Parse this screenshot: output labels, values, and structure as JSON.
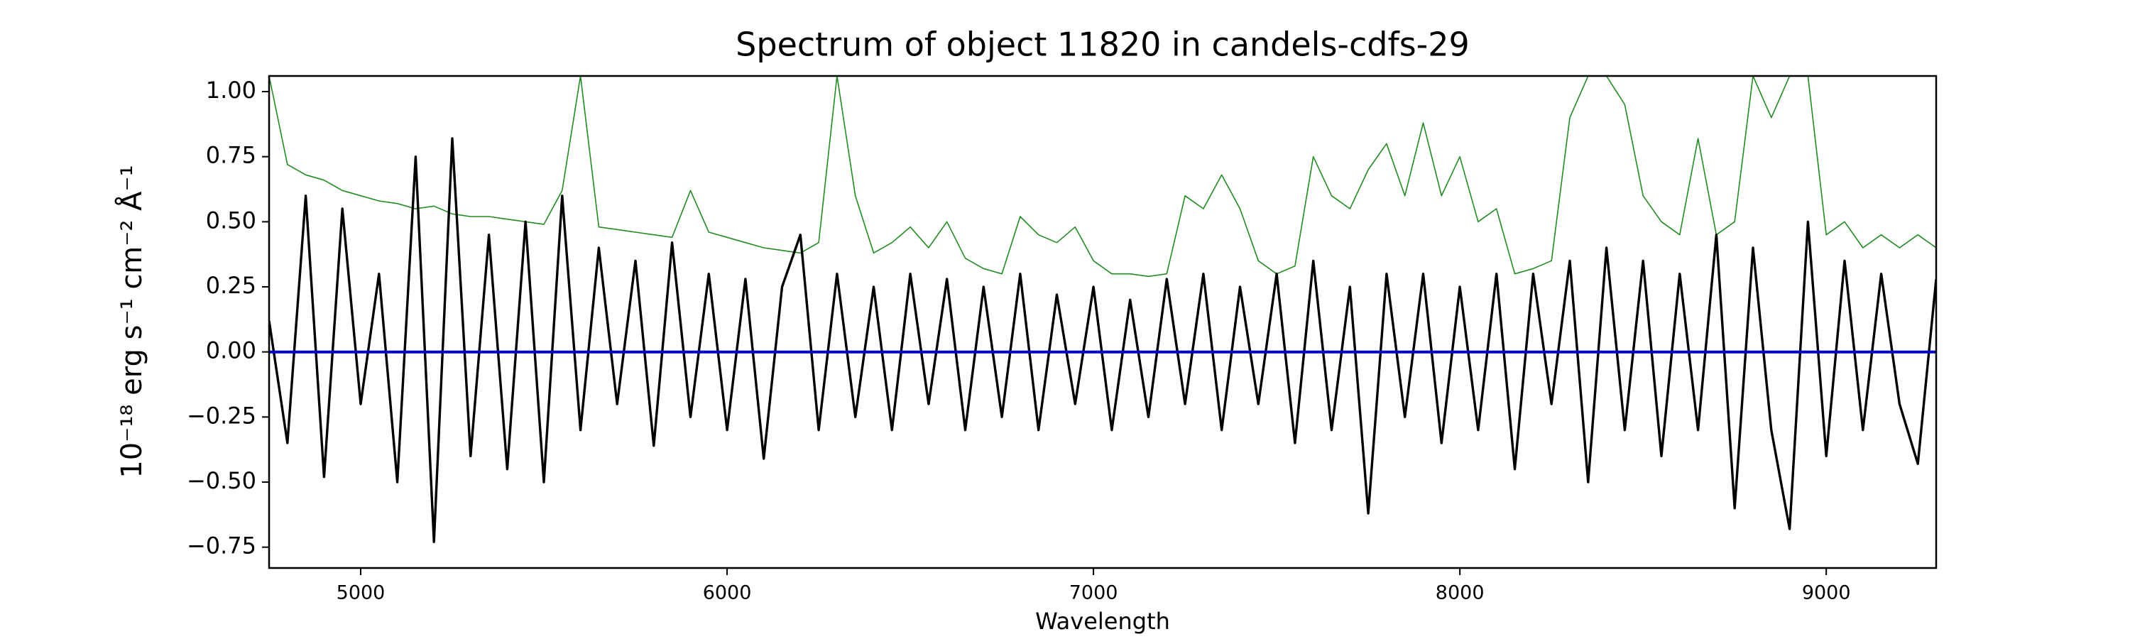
{
  "chart_data": {
    "type": "line",
    "title": "Spectrum of object 11820 in candels-cdfs-29",
    "xlabel": "Wavelength",
    "ylabel": "10⁻¹⁸ erg s⁻¹ cm⁻² Å⁻¹",
    "x": [
      4750,
      4800,
      4850,
      4900,
      4950,
      5000,
      5050,
      5100,
      5150,
      5200,
      5250,
      5300,
      5350,
      5400,
      5450,
      5500,
      5550,
      5600,
      5650,
      5700,
      5750,
      5800,
      5850,
      5900,
      5950,
      6000,
      6050,
      6100,
      6150,
      6200,
      6250,
      6300,
      6350,
      6400,
      6450,
      6500,
      6550,
      6600,
      6650,
      6700,
      6750,
      6800,
      6850,
      6900,
      6950,
      7000,
      7050,
      7100,
      7150,
      7200,
      7250,
      7300,
      7350,
      7400,
      7450,
      7500,
      7550,
      7600,
      7650,
      7700,
      7750,
      7800,
      7850,
      7900,
      7950,
      8000,
      8050,
      8100,
      8150,
      8200,
      8250,
      8300,
      8350,
      8400,
      8450,
      8500,
      8550,
      8600,
      8650,
      8700,
      8750,
      8800,
      8850,
      8900,
      8950,
      9000,
      9050,
      9100,
      9150,
      9200,
      9250,
      9300
    ],
    "series": [
      {
        "color": "#228b22",
        "values": [
          1.06,
          0.72,
          0.68,
          0.66,
          0.62,
          0.6,
          0.58,
          0.57,
          0.55,
          0.56,
          0.53,
          0.52,
          0.52,
          0.51,
          0.5,
          0.49,
          0.62,
          1.06,
          0.48,
          0.47,
          0.46,
          0.45,
          0.44,
          0.62,
          0.46,
          0.44,
          0.42,
          0.4,
          0.39,
          0.38,
          0.42,
          1.06,
          0.6,
          0.38,
          0.42,
          0.48,
          0.4,
          0.5,
          0.36,
          0.32,
          0.3,
          0.52,
          0.45,
          0.42,
          0.48,
          0.35,
          0.3,
          0.3,
          0.29,
          0.3,
          0.6,
          0.55,
          0.68,
          0.55,
          0.35,
          0.3,
          0.33,
          0.75,
          0.6,
          0.55,
          0.7,
          0.8,
          0.6,
          0.88,
          0.6,
          0.75,
          0.5,
          0.55,
          0.3,
          0.32,
          0.35,
          0.9,
          1.06,
          1.06,
          0.95,
          0.6,
          0.5,
          0.45,
          0.82,
          0.45,
          0.5,
          1.06,
          0.9,
          1.06,
          1.06,
          0.45,
          0.5,
          0.4,
          0.45,
          0.4,
          0.45,
          0.4
        ]
      },
      {
        "color": "#000000",
        "values": [
          0.12,
          -0.35,
          0.6,
          -0.48,
          0.55,
          -0.2,
          0.3,
          -0.5,
          0.75,
          -0.73,
          0.82,
          -0.4,
          0.45,
          -0.45,
          0.5,
          -0.5,
          0.6,
          -0.3,
          0.4,
          -0.2,
          0.35,
          -0.36,
          0.42,
          -0.25,
          0.3,
          -0.3,
          0.28,
          -0.41,
          0.25,
          0.45,
          -0.3,
          0.3,
          -0.25,
          0.25,
          -0.3,
          0.3,
          -0.2,
          0.28,
          -0.3,
          0.25,
          -0.25,
          0.3,
          -0.3,
          0.22,
          -0.2,
          0.25,
          -0.3,
          0.2,
          -0.25,
          0.28,
          -0.2,
          0.3,
          -0.3,
          0.25,
          -0.2,
          0.3,
          -0.35,
          0.35,
          -0.3,
          0.25,
          -0.62,
          0.3,
          -0.25,
          0.3,
          -0.35,
          0.25,
          -0.3,
          0.3,
          -0.45,
          0.3,
          -0.2,
          0.35,
          -0.5,
          0.4,
          -0.3,
          0.35,
          -0.4,
          0.3,
          -0.3,
          0.45,
          -0.6,
          0.4,
          -0.3,
          -0.68,
          0.5,
          -0.4,
          0.35,
          -0.3,
          0.3,
          -0.2,
          -0.43,
          0.28
        ]
      },
      {
        "color": "#0000cc",
        "values": [
          0,
          0,
          0,
          0,
          0,
          0,
          0,
          0,
          0,
          0,
          0,
          0,
          0,
          0,
          0,
          0,
          0,
          0,
          0,
          0,
          0,
          0,
          0,
          0,
          0,
          0,
          0,
          0,
          0,
          0,
          0,
          0,
          0,
          0,
          0,
          0,
          0,
          0,
          0,
          0,
          0,
          0,
          0,
          0,
          0,
          0,
          0,
          0,
          0,
          0,
          0,
          0,
          0,
          0,
          0,
          0,
          0,
          0,
          0,
          0,
          0,
          0,
          0,
          0,
          0,
          0,
          0,
          0,
          0,
          0,
          0,
          0,
          0,
          0,
          0,
          0,
          0,
          0,
          0,
          0,
          0,
          0,
          0,
          0,
          0,
          0,
          0,
          0,
          0,
          0,
          0,
          0
        ]
      }
    ],
    "xlim": [
      4750,
      9300
    ],
    "xticks": [
      5000,
      6000,
      7000,
      8000,
      9000
    ],
    "ylim": [
      -0.83,
      1.06
    ],
    "yticks": [
      {
        "value": -0.75,
        "label": "−0.75"
      },
      {
        "value": -0.5,
        "label": "−0.50"
      },
      {
        "value": -0.25,
        "label": "−0.25"
      },
      {
        "value": 0,
        "label": "0.00"
      },
      {
        "value": 0.25,
        "label": "0.25"
      },
      {
        "value": 0.5,
        "label": "0.50"
      },
      {
        "value": 0.75,
        "label": "0.75"
      },
      {
        "value": 1,
        "label": "1.00"
      }
    ]
  }
}
